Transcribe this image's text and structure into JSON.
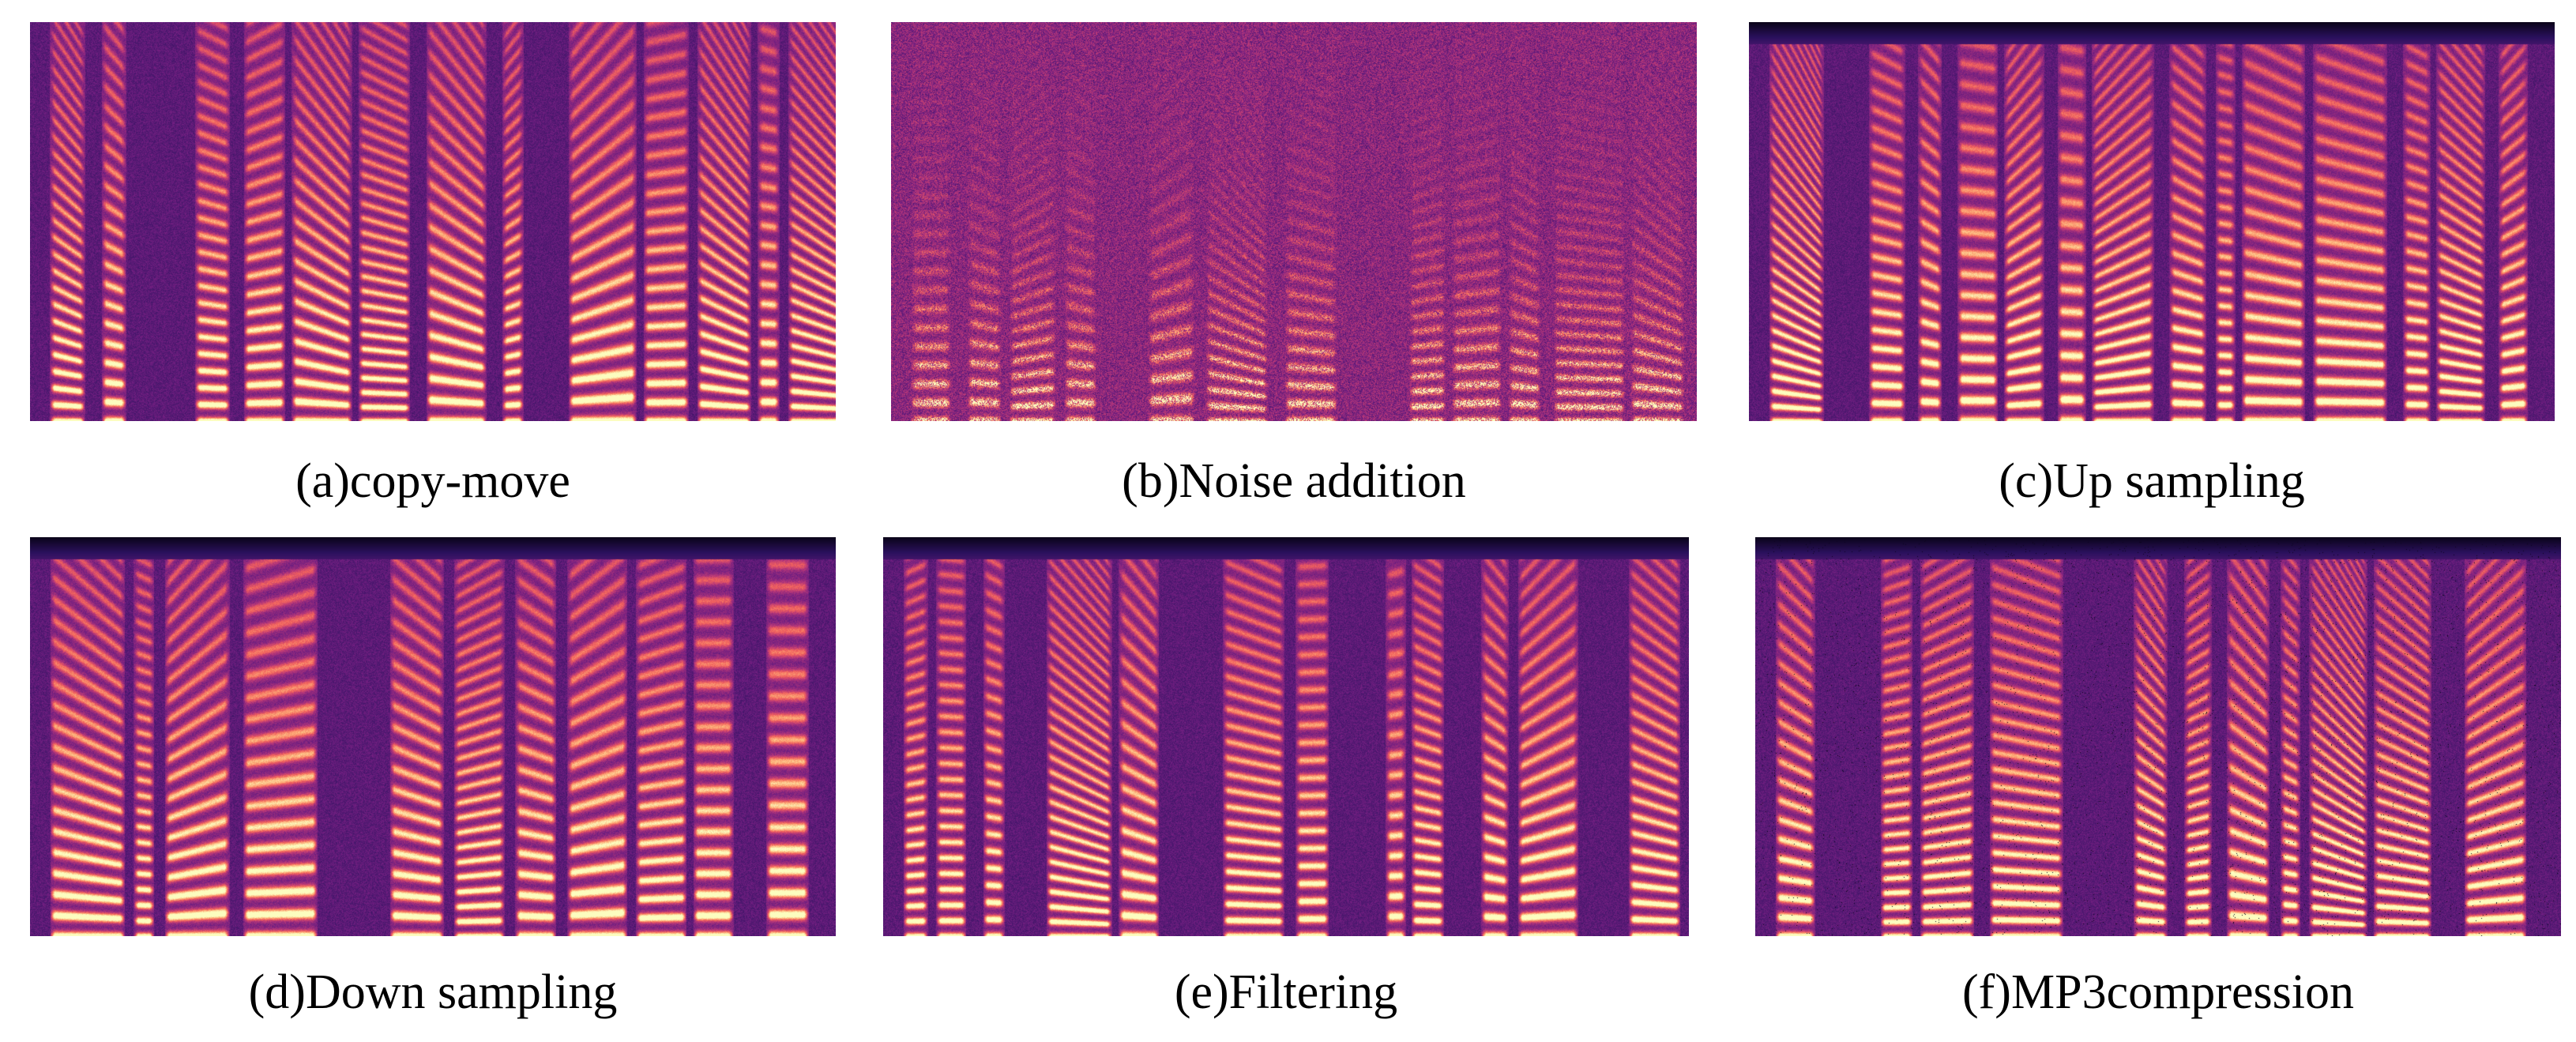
{
  "panels": [
    {
      "id": "a",
      "caption": "(a)copy-move",
      "variant": "speech",
      "seed": 11
    },
    {
      "id": "b",
      "caption": "(b)Noise addition",
      "variant": "noise",
      "seed": 23
    },
    {
      "id": "c",
      "caption": "(c)Up sampling",
      "variant": "speech-topblack",
      "seed": 37
    },
    {
      "id": "d",
      "caption": "(d)Down sampling",
      "variant": "speech-topblack",
      "seed": 41
    },
    {
      "id": "e",
      "caption": "(e)Filtering",
      "variant": "speech-topblack",
      "seed": 53
    },
    {
      "id": "f",
      "caption": "(f)MP3compression",
      "variant": "speech-compressed",
      "seed": 67
    }
  ],
  "colormap": [
    "#000004",
    "#2c115f",
    "#721f81",
    "#b73779",
    "#f1605d",
    "#feb078",
    "#fcfdbf"
  ]
}
